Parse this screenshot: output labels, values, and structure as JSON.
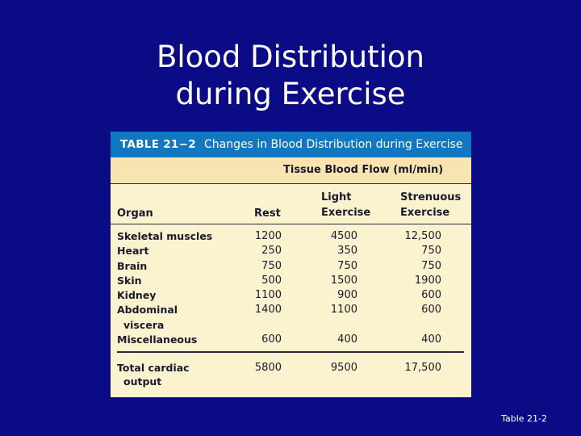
{
  "slide": {
    "title_line1": "Blood Distribution",
    "title_line2": "during Exercise",
    "footer": "Table 21-2"
  },
  "table": {
    "number": "TABLE 21−2",
    "caption": "Changes in Blood Distribution during Exercise",
    "group_header": "Tissue Blood Flow (ml/min)",
    "columns": {
      "organ": "Organ",
      "rest": "Rest",
      "light_1": "Light",
      "light_2": "Exercise",
      "strenuous_1": "Strenuous",
      "strenuous_2": "Exercise"
    },
    "rows": [
      {
        "organ": "Skeletal muscles",
        "rest": "1200",
        "light": "4500",
        "strenuous": "12,500"
      },
      {
        "organ": "Heart",
        "rest": "250",
        "light": "350",
        "strenuous": "750"
      },
      {
        "organ": "Brain",
        "rest": "750",
        "light": "750",
        "strenuous": "750"
      },
      {
        "organ": "Skin",
        "rest": "500",
        "light": "1500",
        "strenuous": "1900"
      },
      {
        "organ": "Kidney",
        "rest": "1100",
        "light": "900",
        "strenuous": "600"
      },
      {
        "organ": "Abdominal",
        "organ_line2": "viscera",
        "rest": "1400",
        "light": "1100",
        "strenuous": "600"
      },
      {
        "organ": "Miscellaneous",
        "rest": "600",
        "light": "400",
        "strenuous": "400"
      }
    ],
    "total": {
      "label_1": "Total cardiac",
      "label_2": "output",
      "rest": "5800",
      "light": "9500",
      "strenuous": "17,500"
    }
  }
}
